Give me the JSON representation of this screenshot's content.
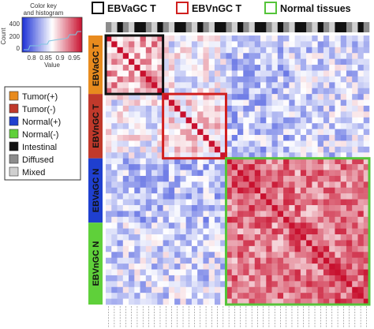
{
  "color_key": {
    "title_line1": "Color key",
    "title_line2": "and histogram",
    "y_axis_label": "Count",
    "y_ticks": [
      "400",
      "200",
      "0"
    ],
    "x_ticks": [
      "0.8",
      "0.85",
      "0.9",
      "0.95"
    ],
    "x_axis_label": "Value",
    "range": [
      0.75,
      1.0
    ]
  },
  "legend": [
    {
      "label": "Tumor(+)",
      "color": "#e88b1e"
    },
    {
      "label": "Tumor(-)",
      "color": "#c0392b"
    },
    {
      "label": "Normal(+)",
      "color": "#1f3fcf"
    },
    {
      "label": "Normal(-)",
      "color": "#5fd03a"
    },
    {
      "label": "Intestinal",
      "color": "#111111"
    },
    {
      "label": "Diffused",
      "color": "#8c8c8c"
    },
    {
      "label": "Mixed",
      "color": "#cfcfcf"
    }
  ],
  "header": [
    {
      "label": "EBVaGC T",
      "color": "#111111"
    },
    {
      "label": "EBVnGC T",
      "color": "#d0201f"
    },
    {
      "label": "Normal tissues",
      "color": "#55c43a"
    }
  ],
  "groups": [
    {
      "label": "EBVaGC T",
      "color": "#e88b1e"
    },
    {
      "label": "EBVnGC T",
      "color": "#c0392b"
    },
    {
      "label": "EBVaGC N",
      "color": "#1f3fcf"
    },
    {
      "label": "EBVnGC N",
      "color": "#5fd03a"
    }
  ],
  "chart_data": {
    "type": "heatmap",
    "description_groups": [
      "EBVaGC T",
      "EBVnGC T",
      "EBVaGC N",
      "EBVnGC N"
    ],
    "group_sizes": [
      10,
      11,
      11,
      14
    ],
    "block_mean_values": [
      [
        0.92,
        0.87,
        0.84,
        0.85
      ],
      [
        0.87,
        0.89,
        0.84,
        0.85
      ],
      [
        0.84,
        0.84,
        0.95,
        0.94
      ],
      [
        0.85,
        0.85,
        0.94,
        0.95
      ]
    ],
    "diagonal_value": 1.0,
    "color_scale": {
      "min": 0.75,
      "mid": 0.875,
      "max": 1.0,
      "low_color": "#1a2fd6",
      "mid_color": "#ffffff",
      "high_color": "#c8102e"
    },
    "highlight_boxes": [
      {
        "label": "EBVaGC T",
        "rows": [
          0,
          10
        ]
      },
      {
        "label": "EBVnGC T",
        "rows": [
          10,
          21
        ]
      },
      {
        "label": "Normal tissues",
        "rows": [
          21,
          46
        ]
      }
    ]
  }
}
